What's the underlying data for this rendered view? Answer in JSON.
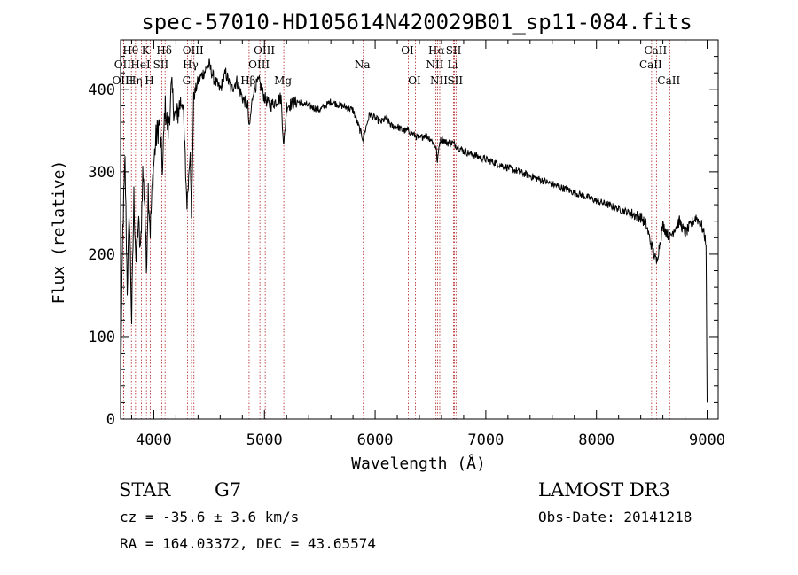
{
  "chart_data": {
    "type": "line",
    "title": "spec-57010-HD105614N420029B01_sp11-084.fits",
    "xlabel": "Wavelength (Å)",
    "ylabel": "Flux (relative)",
    "xlim": [
      3700,
      9100
    ],
    "ylim": [
      0,
      460
    ],
    "xticks": [
      4000,
      5000,
      6000,
      7000,
      8000,
      9000
    ],
    "xtick_labels": [
      "4000",
      "5000",
      "6000",
      "7000",
      "8000",
      "9000"
    ],
    "yticks": [
      0,
      100,
      200,
      300,
      400
    ],
    "ytick_labels": [
      "0",
      "100",
      "200",
      "300",
      "400"
    ],
    "spectrum": {
      "name": "flux",
      "x": [
        3700,
        3720,
        3740,
        3760,
        3780,
        3800,
        3820,
        3840,
        3860,
        3880,
        3900,
        3920,
        3933,
        3950,
        3968,
        3990,
        4000,
        4020,
        4050,
        4080,
        4100,
        4130,
        4160,
        4200,
        4230,
        4260,
        4300,
        4330,
        4340,
        4360,
        4400,
        4450,
        4500,
        4550,
        4600,
        4650,
        4700,
        4750,
        4800,
        4850,
        4861,
        4900,
        4950,
        5000,
        5050,
        5100,
        5150,
        5175,
        5200,
        5300,
        5400,
        5500,
        5600,
        5700,
        5800,
        5890,
        5950,
        6000,
        6050,
        6100,
        6150,
        6200,
        6250,
        6300,
        6350,
        6400,
        6450,
        6500,
        6550,
        6563,
        6580,
        6600,
        6650,
        6700,
        6750,
        6800,
        6900,
        7000,
        7100,
        7200,
        7300,
        7400,
        7500,
        7600,
        7700,
        7800,
        7900,
        8000,
        8100,
        8200,
        8300,
        8400,
        8450,
        8498,
        8542,
        8600,
        8662,
        8700,
        8750,
        8800,
        8850,
        8900,
        8950,
        8990,
        9000
      ],
      "y": [
        40,
        230,
        310,
        160,
        250,
        120,
        270,
        190,
        240,
        200,
        300,
        260,
        180,
        280,
        230,
        290,
        310,
        340,
        360,
        300,
        380,
        350,
        400,
        360,
        380,
        390,
        260,
        330,
        240,
        390,
        410,
        420,
        430,
        410,
        400,
        420,
        400,
        410,
        390,
        380,
        350,
        400,
        410,
        390,
        380,
        385,
        390,
        330,
        380,
        385,
        380,
        375,
        385,
        380,
        375,
        340,
        370,
        365,
        360,
        365,
        355,
        355,
        350,
        350,
        345,
        340,
        345,
        340,
        330,
        310,
        335,
        340,
        335,
        335,
        330,
        325,
        320,
        315,
        310,
        305,
        300,
        295,
        290,
        285,
        280,
        275,
        270,
        265,
        260,
        255,
        250,
        245,
        235,
        210,
        190,
        235,
        220,
        230,
        240,
        225,
        235,
        245,
        235,
        215,
        20
      ]
    },
    "lines": [
      {
        "label": "Hθ",
        "x": 3798,
        "row": 0
      },
      {
        "label": "OII",
        "x": 3727,
        "row": 1
      },
      {
        "label": "OIII",
        "x": 3728,
        "row": 2
      },
      {
        "label": "Hη",
        "x": 3835,
        "row": 2
      },
      {
        "label": "HeI",
        "x": 3889,
        "row": 1
      },
      {
        "label": "K",
        "x": 3934,
        "row": 0
      },
      {
        "label": "H",
        "x": 3968,
        "row": 2
      },
      {
        "label": "SII",
        "x": 4072,
        "row": 1
      },
      {
        "label": "Hδ",
        "x": 4102,
        "row": 0
      },
      {
        "label": "OIII",
        "x": 4363,
        "row": 0
      },
      {
        "label": "Hγ",
        "x": 4341,
        "row": 1
      },
      {
        "label": "G",
        "x": 4304,
        "row": 2
      },
      {
        "label": "Hβ",
        "x": 4861,
        "row": 2
      },
      {
        "label": "OIII",
        "x": 5007,
        "row": 0
      },
      {
        "label": "OIII",
        "x": 4959,
        "row": 1
      },
      {
        "label": "Mg",
        "x": 5175,
        "row": 2
      },
      {
        "label": "Na",
        "x": 5893,
        "row": 1
      },
      {
        "label": "OI",
        "x": 6300,
        "row": 0
      },
      {
        "label": "OI",
        "x": 6364,
        "row": 2
      },
      {
        "label": "Hα",
        "x": 6563,
        "row": 0
      },
      {
        "label": "NII",
        "x": 6548,
        "row": 1
      },
      {
        "label": "NII",
        "x": 6584,
        "row": 2
      },
      {
        "label": "SII",
        "x": 6717,
        "row": 0
      },
      {
        "label": "Li",
        "x": 6708,
        "row": 1
      },
      {
        "label": "SII",
        "x": 6731,
        "row": 2
      },
      {
        "label": "CaII",
        "x": 8542,
        "row": 0
      },
      {
        "label": "CaII",
        "x": 8498,
        "row": 1
      },
      {
        "label": "CaII",
        "x": 8662,
        "row": 2
      }
    ]
  },
  "info": {
    "object_class": "STAR",
    "subclass": "G7",
    "survey": "LAMOST DR3",
    "redshift_line": "cz = -35.6 ± 3.6 km/s",
    "obs_date": "Obs-Date: 20141218",
    "coords": "RA = 164.03372, DEC =  43.65574"
  }
}
